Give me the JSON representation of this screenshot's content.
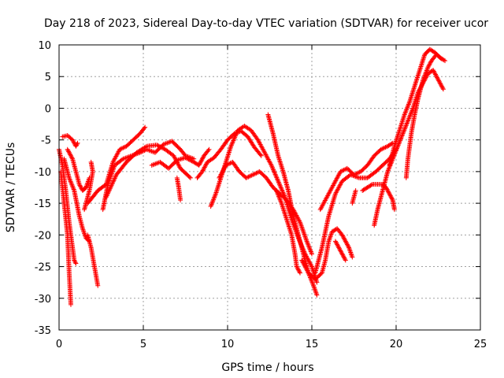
{
  "chart_data": {
    "type": "scatter",
    "title": "Day 218 of 2023, Sidereal Day-to-day VTEC variation (SDTVAR) for receiver ucor",
    "xlabel": "GPS time / hours",
    "ylabel": "SDTVAR / TECUs",
    "xlim": [
      0,
      25
    ],
    "ylim": [
      -35,
      10
    ],
    "x_ticks": [
      0,
      5,
      10,
      15,
      20,
      25
    ],
    "y_ticks": [
      -35,
      -30,
      -25,
      -20,
      -15,
      -10,
      -5,
      0,
      5,
      10
    ],
    "grid": true,
    "marker": "+",
    "color": "#ff0000",
    "series": [
      {
        "points": [
          [
            0.0,
            -6.5
          ],
          [
            0.2,
            -9
          ],
          [
            0.4,
            -13
          ],
          [
            0.6,
            -18
          ],
          [
            0.8,
            -22
          ],
          [
            0.9,
            -24
          ],
          [
            1.0,
            -24.5
          ]
        ]
      },
      {
        "points": [
          [
            0.1,
            -10
          ],
          [
            0.3,
            -15
          ],
          [
            0.5,
            -20
          ],
          [
            0.6,
            -26
          ],
          [
            0.7,
            -31
          ]
        ]
      },
      {
        "points": [
          [
            0.2,
            -4.5
          ],
          [
            0.5,
            -4.3
          ],
          [
            0.8,
            -5
          ],
          [
            1.0,
            -6
          ],
          [
            1.1,
            -5.5
          ]
        ]
      },
      {
        "points": [
          [
            0.3,
            -8
          ],
          [
            0.6,
            -11
          ],
          [
            0.9,
            -13
          ],
          [
            1.2,
            -17
          ],
          [
            1.4,
            -19
          ],
          [
            1.6,
            -20.5
          ],
          [
            1.8,
            -21
          ]
        ]
      },
      {
        "points": [
          [
            0.5,
            -6.5
          ],
          [
            0.8,
            -8
          ],
          [
            1.0,
            -10
          ],
          [
            1.2,
            -12
          ],
          [
            1.4,
            -13
          ],
          [
            1.6,
            -12.5
          ],
          [
            1.8,
            -11
          ]
        ]
      },
      {
        "points": [
          [
            1.7,
            -20
          ],
          [
            1.9,
            -22
          ],
          [
            2.1,
            -25
          ],
          [
            2.3,
            -28
          ]
        ]
      },
      {
        "points": [
          [
            1.5,
            -16
          ],
          [
            1.8,
            -13
          ],
          [
            2.0,
            -10
          ],
          [
            1.9,
            -8.5
          ]
        ]
      },
      {
        "points": [
          [
            1.7,
            -15
          ],
          [
            2.3,
            -13
          ],
          [
            2.8,
            -12
          ],
          [
            3.2,
            -8.5
          ],
          [
            3.6,
            -6.5
          ],
          [
            4.0,
            -6
          ],
          [
            4.4,
            -5
          ],
          [
            4.8,
            -4
          ],
          [
            5.1,
            -3
          ]
        ]
      },
      {
        "points": [
          [
            2.6,
            -16
          ],
          [
            2.9,
            -12
          ],
          [
            3.3,
            -9
          ],
          [
            3.8,
            -8
          ],
          [
            4.3,
            -7.5
          ],
          [
            4.8,
            -7
          ],
          [
            5.2,
            -6.5
          ],
          [
            5.7,
            -7
          ],
          [
            6.2,
            -5.7
          ],
          [
            6.7,
            -5.2
          ],
          [
            7.2,
            -6.5
          ],
          [
            7.5,
            -7.5
          ],
          [
            8.0,
            -8
          ]
        ]
      },
      {
        "points": [
          [
            2.8,
            -14
          ],
          [
            3.4,
            -10.5
          ],
          [
            4.0,
            -8.5
          ],
          [
            4.6,
            -7
          ],
          [
            5.2,
            -6
          ],
          [
            5.8,
            -5.8
          ],
          [
            6.3,
            -6.5
          ],
          [
            6.8,
            -7.5
          ],
          [
            7.2,
            -9.5
          ],
          [
            7.8,
            -11
          ]
        ]
      },
      {
        "points": [
          [
            5.5,
            -9
          ],
          [
            6.0,
            -8.5
          ],
          [
            6.5,
            -9.5
          ],
          [
            7.0,
            -8.2
          ],
          [
            7.5,
            -7.8
          ],
          [
            8.0,
            -8.5
          ],
          [
            8.3,
            -9
          ],
          [
            8.6,
            -7.5
          ],
          [
            8.9,
            -6.5
          ]
        ]
      },
      {
        "points": [
          [
            7.0,
            -11
          ],
          [
            7.1,
            -12.5
          ],
          [
            7.2,
            -14.5
          ]
        ]
      },
      {
        "points": [
          [
            8.2,
            -11
          ],
          [
            8.5,
            -10
          ],
          [
            8.8,
            -8.5
          ],
          [
            9.2,
            -7.8
          ],
          [
            9.6,
            -6.5
          ],
          [
            10.0,
            -5
          ],
          [
            10.4,
            -4
          ],
          [
            10.8,
            -3.6
          ],
          [
            11.2,
            -4.5
          ],
          [
            11.6,
            -6.2
          ],
          [
            12.0,
            -7.5
          ]
        ]
      },
      {
        "points": [
          [
            9.0,
            -15.5
          ],
          [
            9.3,
            -13.5
          ],
          [
            9.6,
            -11
          ],
          [
            9.9,
            -8.5
          ],
          [
            10.2,
            -6
          ],
          [
            10.6,
            -3.5
          ],
          [
            11.0,
            -2.8
          ],
          [
            11.4,
            -3.5
          ],
          [
            11.8,
            -5
          ],
          [
            12.2,
            -7
          ],
          [
            12.6,
            -9
          ],
          [
            13.0,
            -11.5
          ],
          [
            13.4,
            -14
          ],
          [
            13.8,
            -17.5
          ],
          [
            14.2,
            -20.5
          ],
          [
            14.6,
            -23
          ],
          [
            15.0,
            -25
          ],
          [
            15.3,
            -27.5
          ]
        ]
      },
      {
        "points": [
          [
            9.5,
            -11
          ],
          [
            9.9,
            -9
          ],
          [
            10.3,
            -8.5
          ],
          [
            10.7,
            -10
          ],
          [
            11.1,
            -11
          ],
          [
            11.5,
            -10.5
          ],
          [
            11.9,
            -10
          ],
          [
            12.3,
            -11
          ],
          [
            12.7,
            -12.5
          ],
          [
            13.1,
            -13.5
          ],
          [
            13.5,
            -14.5
          ],
          [
            13.9,
            -16
          ],
          [
            14.3,
            -18
          ],
          [
            14.7,
            -21
          ],
          [
            15.0,
            -23
          ]
        ]
      },
      {
        "points": [
          [
            12.4,
            -1
          ],
          [
            12.7,
            -4
          ],
          [
            13.0,
            -7.5
          ],
          [
            13.3,
            -10
          ],
          [
            13.6,
            -13
          ],
          [
            13.9,
            -17
          ],
          [
            14.2,
            -20
          ],
          [
            14.5,
            -23
          ],
          [
            14.8,
            -26
          ],
          [
            15.1,
            -28
          ],
          [
            15.3,
            -29.5
          ]
        ]
      },
      {
        "points": [
          [
            12.9,
            -13
          ],
          [
            13.2,
            -15
          ],
          [
            13.5,
            -17.5
          ],
          [
            13.8,
            -20
          ],
          [
            14.0,
            -23
          ],
          [
            14.1,
            -25
          ],
          [
            14.3,
            -26
          ]
        ]
      },
      {
        "points": [
          [
            14.4,
            -24
          ],
          [
            14.8,
            -26
          ],
          [
            15.2,
            -27
          ],
          [
            15.6,
            -26
          ],
          [
            15.8,
            -24
          ],
          [
            16.0,
            -21
          ],
          [
            16.2,
            -19.5
          ],
          [
            16.5,
            -19
          ],
          [
            16.8,
            -20
          ],
          [
            17.0,
            -21
          ],
          [
            17.2,
            -22
          ],
          [
            17.4,
            -23.5
          ]
        ]
      },
      {
        "points": [
          [
            15.2,
            -26
          ],
          [
            15.6,
            -22
          ],
          [
            16.0,
            -17
          ],
          [
            16.4,
            -13.5
          ],
          [
            16.8,
            -11.5
          ],
          [
            17.3,
            -10.5
          ],
          [
            17.8,
            -11
          ],
          [
            18.3,
            -11
          ],
          [
            18.8,
            -10
          ],
          [
            19.2,
            -9
          ],
          [
            19.6,
            -8
          ],
          [
            20.0,
            -6.5
          ]
        ]
      },
      {
        "points": [
          [
            15.5,
            -16
          ],
          [
            15.9,
            -14
          ],
          [
            16.3,
            -12
          ],
          [
            16.7,
            -10
          ],
          [
            17.1,
            -9.5
          ],
          [
            17.5,
            -10.5
          ],
          [
            17.9,
            -10
          ],
          [
            18.3,
            -9
          ],
          [
            18.7,
            -7.5
          ],
          [
            19.1,
            -6.5
          ],
          [
            19.5,
            -6
          ],
          [
            19.8,
            -5.5
          ]
        ]
      },
      {
        "points": [
          [
            16.4,
            -21
          ],
          [
            16.7,
            -22.5
          ],
          [
            17.0,
            -24
          ]
        ]
      },
      {
        "points": [
          [
            18.0,
            -13
          ],
          [
            18.3,
            -12.5
          ],
          [
            18.6,
            -12
          ],
          [
            18.9,
            -12
          ],
          [
            19.2,
            -12
          ],
          [
            19.4,
            -12.5
          ],
          [
            19.6,
            -13.5
          ],
          [
            19.8,
            -14.5
          ],
          [
            19.9,
            -16
          ]
        ]
      },
      {
        "points": [
          [
            17.4,
            -15
          ],
          [
            17.6,
            -13
          ]
        ]
      },
      {
        "points": [
          [
            18.7,
            -18.5
          ],
          [
            18.9,
            -16
          ],
          [
            19.2,
            -13
          ],
          [
            19.5,
            -10
          ],
          [
            19.8,
            -8
          ],
          [
            20.1,
            -6
          ],
          [
            20.4,
            -4
          ],
          [
            20.7,
            -2
          ],
          [
            21.0,
            0
          ],
          [
            21.3,
            2.5
          ],
          [
            21.6,
            4
          ],
          [
            21.9,
            5.5
          ],
          [
            22.2,
            6
          ],
          [
            22.5,
            4.5
          ],
          [
            22.8,
            3
          ]
        ]
      },
      {
        "points": [
          [
            19.6,
            -9
          ],
          [
            19.9,
            -6
          ],
          [
            20.2,
            -3.5
          ],
          [
            20.5,
            -1
          ],
          [
            20.8,
            1
          ],
          [
            21.1,
            3.5
          ],
          [
            21.4,
            6
          ],
          [
            21.7,
            8.5
          ],
          [
            22.0,
            9.3
          ],
          [
            22.3,
            8.8
          ],
          [
            22.6,
            8
          ],
          [
            22.9,
            7.5
          ]
        ]
      },
      {
        "points": [
          [
            20.6,
            -11
          ],
          [
            20.7,
            -8
          ],
          [
            20.9,
            -4
          ],
          [
            21.1,
            -1
          ],
          [
            21.3,
            1.5
          ],
          [
            21.6,
            4.5
          ],
          [
            21.9,
            6.5
          ],
          [
            22.1,
            7.5
          ],
          [
            22.4,
            8.5
          ],
          [
            22.7,
            7.8
          ]
        ]
      }
    ]
  }
}
